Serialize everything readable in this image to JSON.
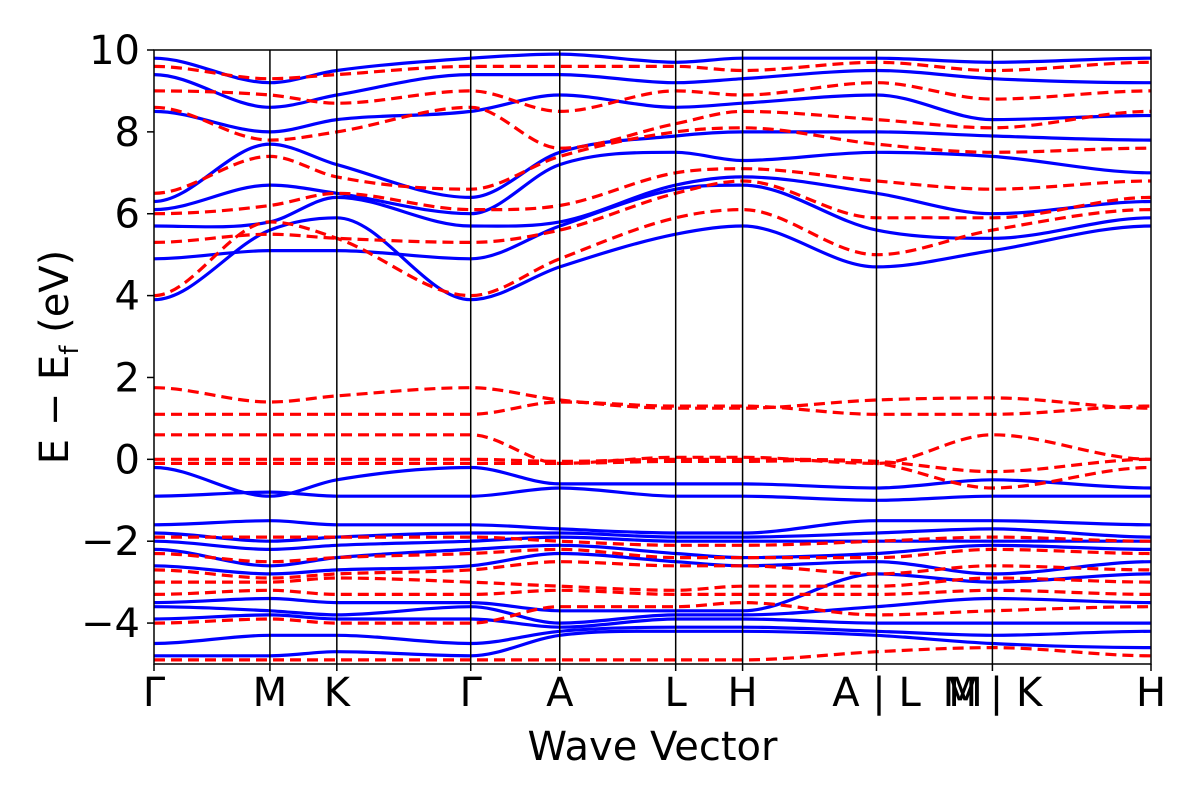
{
  "chart_data": {
    "type": "line",
    "title": "",
    "xlabel": "Wave Vector",
    "ylabel": {
      "prefix": "E − E",
      "subscript": "f",
      "suffix": " (eV)"
    },
    "ylim": [
      -5,
      10
    ],
    "yticks": [
      -4,
      -2,
      0,
      2,
      4,
      6,
      8,
      10
    ],
    "ytick_labels": [
      "−4",
      "−2",
      "0",
      "2",
      "4",
      "6",
      "8",
      "10"
    ],
    "kpath_ticks": [
      {
        "label": "Γ",
        "k": 0.0
      },
      {
        "label": "M",
        "k": 1.0
      },
      {
        "label": "K",
        "k": 1.577
      },
      {
        "label": "Γ",
        "k": 2.732
      },
      {
        "label": "A",
        "k": 3.5
      },
      {
        "label": "L",
        "k": 4.5
      },
      {
        "label": "H",
        "k": 5.077
      },
      {
        "label": "A | L",
        "k": 6.232
      },
      {
        "label": "M | K",
        "k": 7.232
      },
      {
        "label": "H",
        "k": 8.6
      }
    ],
    "extra_tick_labels": [
      {
        "label": "M",
        "k": 7.0
      }
    ],
    "segments": [
      [
        0.0,
        1.0
      ],
      [
        1.0,
        1.577
      ],
      [
        1.577,
        2.732
      ],
      [
        2.732,
        3.5
      ],
      [
        3.5,
        4.5
      ],
      [
        4.5,
        5.077
      ],
      [
        5.077,
        6.232
      ],
      [
        6.232,
        7.232
      ],
      [
        7.232,
        8.6
      ]
    ],
    "series": [
      {
        "name": "blue-solid",
        "color": "#0000ff",
        "style": "solid",
        "bands": [
          [
            -4.8,
            -4.8,
            -4.7,
            -4.8,
            -4.3,
            -4.2,
            -4.2,
            -4.3,
            -4.5,
            -4.6
          ],
          [
            -4.5,
            -4.3,
            -4.3,
            -4.5,
            -4.2,
            -4.1,
            -4.1,
            -4.2,
            -4.3,
            -4.2
          ],
          [
            -3.9,
            -3.8,
            -3.9,
            -3.9,
            -4.1,
            -3.9,
            -3.9,
            -4.0,
            -4.0,
            -4.0
          ],
          [
            -3.6,
            -3.7,
            -3.8,
            -3.6,
            -4.0,
            -3.8,
            -3.8,
            -3.6,
            -3.4,
            -3.5
          ],
          [
            -3.5,
            -3.4,
            -3.5,
            -3.5,
            -3.7,
            -3.7,
            -3.7,
            -2.8,
            -3.0,
            -2.8
          ],
          [
            -2.6,
            -2.8,
            -2.7,
            -2.6,
            -2.3,
            -2.5,
            -2.6,
            -2.5,
            -2.8,
            -2.5
          ],
          [
            -2.2,
            -2.6,
            -2.4,
            -2.2,
            -2.1,
            -2.3,
            -2.4,
            -2.3,
            -2.1,
            -2.2
          ],
          [
            -2.0,
            -2.2,
            -2.1,
            -2.0,
            -1.9,
            -2.0,
            -2.0,
            -2.0,
            -2.0,
            -2.0
          ],
          [
            -1.8,
            -2.0,
            -1.9,
            -1.8,
            -1.8,
            -1.9,
            -1.9,
            -1.8,
            -1.7,
            -1.9
          ],
          [
            -1.6,
            -1.5,
            -1.6,
            -1.6,
            -1.7,
            -1.8,
            -1.8,
            -1.5,
            -1.5,
            -1.6
          ],
          [
            -0.9,
            -0.8,
            -0.9,
            -0.9,
            -0.7,
            -0.9,
            -0.9,
            -1.0,
            -0.9,
            -0.9
          ],
          [
            -0.2,
            -0.9,
            -0.5,
            -0.2,
            -0.6,
            -0.6,
            -0.6,
            -0.7,
            -0.5,
            -0.7
          ],
          [
            3.9,
            5.6,
            5.9,
            3.9,
            4.7,
            5.5,
            5.7,
            4.7,
            5.1,
            5.7
          ],
          [
            4.9,
            5.1,
            5.1,
            4.9,
            5.7,
            6.6,
            6.7,
            5.6,
            5.4,
            5.9
          ],
          [
            5.7,
            5.8,
            6.4,
            5.7,
            5.8,
            6.7,
            6.9,
            6.5,
            6.0,
            6.3
          ],
          [
            6.1,
            6.7,
            6.5,
            6.0,
            7.2,
            7.5,
            7.3,
            7.5,
            7.4,
            7.0
          ],
          [
            6.3,
            7.7,
            7.2,
            6.4,
            7.5,
            7.9,
            8.0,
            8.0,
            7.9,
            7.8
          ],
          [
            8.5,
            8.0,
            8.3,
            8.5,
            8.9,
            8.6,
            8.7,
            8.9,
            8.3,
            8.4
          ],
          [
            9.4,
            8.6,
            8.9,
            9.4,
            9.4,
            9.2,
            9.3,
            9.5,
            9.3,
            9.2
          ],
          [
            9.8,
            9.2,
            9.5,
            9.8,
            9.9,
            9.7,
            9.8,
            9.8,
            9.7,
            9.8
          ]
        ]
      },
      {
        "name": "red-dashed",
        "color": "#ff0000",
        "style": "dashed",
        "bands": [
          [
            -4.9,
            -4.9,
            -4.9,
            -4.9,
            -4.9,
            -4.9,
            -4.9,
            -4.7,
            -4.6,
            -4.8
          ],
          [
            -4.0,
            -3.9,
            -4.0,
            -4.0,
            -3.6,
            -3.6,
            -3.5,
            -3.8,
            -3.7,
            -3.6
          ],
          [
            -3.3,
            -3.2,
            -3.3,
            -3.3,
            -3.2,
            -3.3,
            -3.3,
            -3.3,
            -3.2,
            -3.3
          ],
          [
            -3.0,
            -3.0,
            -2.9,
            -3.0,
            -3.1,
            -3.2,
            -3.1,
            -3.1,
            -2.9,
            -3.0
          ],
          [
            -2.7,
            -2.9,
            -2.8,
            -2.7,
            -2.5,
            -2.6,
            -2.6,
            -2.8,
            -2.6,
            -2.7
          ],
          [
            -2.3,
            -2.5,
            -2.4,
            -2.3,
            -2.2,
            -2.4,
            -2.4,
            -2.4,
            -2.2,
            -2.3
          ],
          [
            -1.9,
            -1.9,
            -1.9,
            -1.9,
            -2.0,
            -2.1,
            -2.1,
            -2.0,
            -1.9,
            -2.0
          ],
          [
            -0.1,
            -0.1,
            -0.1,
            -0.1,
            -0.1,
            -0.05,
            -0.05,
            -0.1,
            -0.7,
            -0.2
          ],
          [
            0.0,
            0.0,
            0.0,
            0.0,
            -0.05,
            0.0,
            0.0,
            -0.05,
            -0.3,
            0.0
          ],
          [
            0.6,
            0.6,
            0.6,
            0.6,
            -0.1,
            0.05,
            0.05,
            -0.1,
            0.6,
            0.0
          ],
          [
            1.1,
            1.1,
            1.1,
            1.1,
            1.4,
            1.3,
            1.3,
            1.1,
            1.1,
            1.3
          ],
          [
            1.75,
            1.4,
            1.55,
            1.75,
            1.45,
            1.25,
            1.25,
            1.45,
            1.5,
            1.25
          ],
          [
            4.0,
            5.8,
            5.4,
            4.0,
            4.9,
            5.9,
            6.1,
            5.0,
            5.6,
            6.1
          ],
          [
            5.3,
            5.5,
            5.4,
            5.3,
            5.6,
            6.5,
            6.8,
            5.9,
            5.9,
            6.4
          ],
          [
            6.0,
            6.2,
            6.5,
            6.1,
            6.2,
            7.0,
            7.1,
            6.8,
            6.6,
            6.8
          ],
          [
            6.5,
            7.4,
            6.9,
            6.6,
            7.4,
            8.0,
            8.1,
            7.7,
            7.5,
            7.6
          ],
          [
            8.6,
            7.8,
            8.0,
            8.6,
            7.6,
            8.2,
            8.5,
            8.3,
            8.1,
            8.5
          ],
          [
            9.0,
            8.9,
            8.7,
            9.0,
            8.5,
            9.0,
            8.9,
            9.2,
            8.8,
            9.0
          ],
          [
            9.6,
            9.3,
            9.4,
            9.6,
            9.6,
            9.6,
            9.5,
            9.7,
            9.5,
            9.7
          ]
        ]
      }
    ]
  }
}
